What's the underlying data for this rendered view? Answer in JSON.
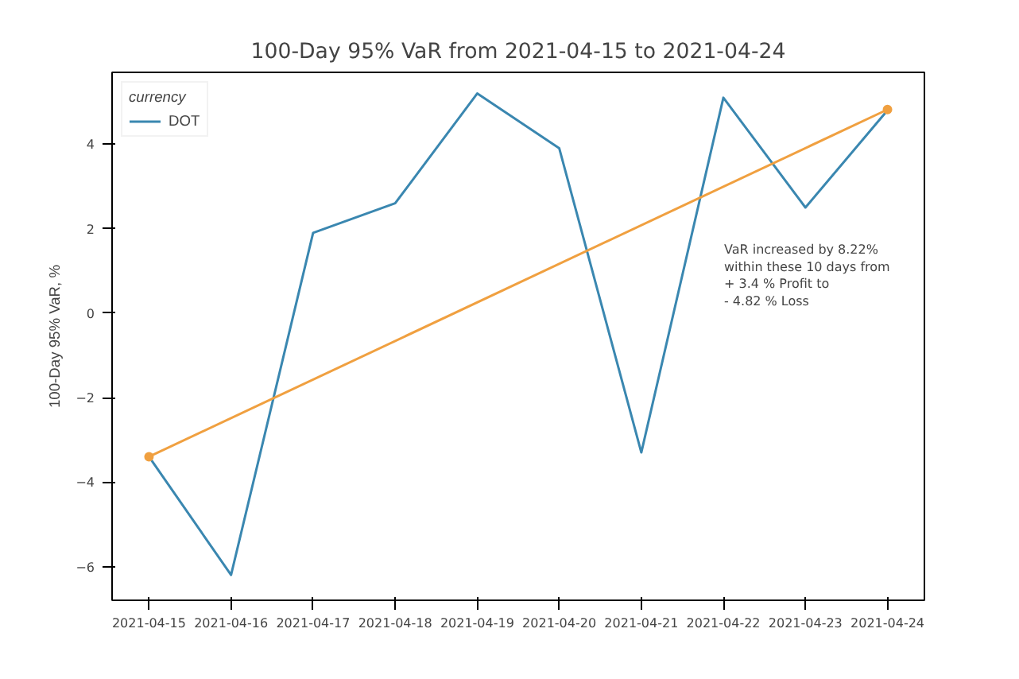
{
  "chart_data": {
    "type": "line",
    "title": "100-Day 95% VaR from 2021-04-15 to 2021-04-24",
    "ylabel": "100-Day 95% VaR, %",
    "legend_title": "currency",
    "legend": "top left",
    "grid": false,
    "categories": [
      "2021-04-15",
      "2021-04-16",
      "2021-04-17",
      "2021-04-18",
      "2021-04-19",
      "2021-04-20",
      "2021-04-21",
      "2021-04-22",
      "2021-04-23",
      "2021-04-24"
    ],
    "series": [
      {
        "name": "DOT",
        "color": "#3a87b0",
        "values": [
          -3.4,
          -6.2,
          1.9,
          2.6,
          5.2,
          3.9,
          -3.3,
          5.1,
          2.5,
          4.8
        ]
      },
      {
        "type": "line",
        "color": "#f0a040",
        "marker": "circle",
        "values": [
          -3.4,
          null,
          null,
          null,
          null,
          null,
          null,
          null,
          null,
          4.82
        ]
      }
    ],
    "ylim": [
      -6.8,
      5.7
    ],
    "yticks": [
      -6,
      -4,
      -2,
      0,
      2,
      4
    ],
    "annotations": [
      "VaR increased by 8.22%\n within these 10 days from\n + 3.4 % Profit to\n - 4.82 % Loss"
    ]
  }
}
